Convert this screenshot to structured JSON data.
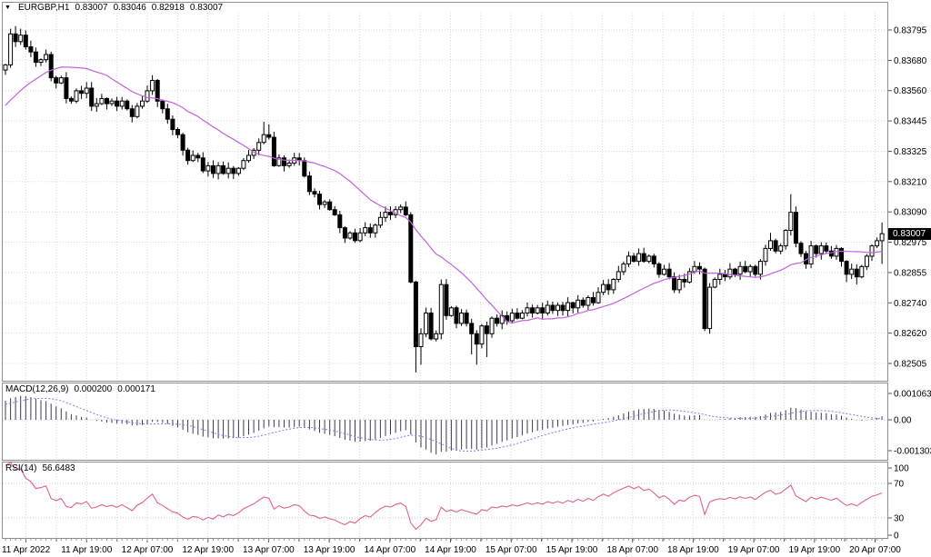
{
  "header": {
    "collapse_icon": "▼",
    "symbol_period": "EURGBP,H1",
    "open": "0.83007",
    "high": "0.83046",
    "low": "0.82918",
    "close": "0.83007"
  },
  "indicators": {
    "macd": {
      "label": "MACD(12,26,9)",
      "value_main": "0.000200",
      "value_signal": "0.000171"
    },
    "rsi": {
      "label": "RSI(14)",
      "value": "56.6483"
    }
  },
  "price_axis": {
    "current_price": "0.83007"
  },
  "colors": {
    "bull": "#ffffff",
    "bear": "#000000",
    "outline": "#000000",
    "ma": "#c162de",
    "macd_hist": "#3c3c50",
    "macd_signal": "#8878e0",
    "rsi": "#e2618c",
    "grid": "#d9d9d9",
    "level": "#c8c8c8",
    "tick": "#555555",
    "panel_border": "#8f8f8f",
    "price_tag_bg": "#000000",
    "price_tag_fg": "#ffffff"
  },
  "chart_data": {
    "type": "candlestick",
    "symbol": "EURGBP",
    "timeframe": "H1",
    "title": "EURGBP,H1 0.83007 0.83046 0.82918 0.83007",
    "price_axis_ticks": [
      "0.83795",
      "0.83680",
      "0.83560",
      "0.83445",
      "0.83325",
      "0.83210",
      "0.83090",
      "0.82975",
      "0.82855",
      "0.82740",
      "0.82620",
      "0.82505"
    ],
    "price_axis_range": [
      0.83795,
      0.82505
    ],
    "current_price": 0.83007,
    "macd_axis_ticks": [
      "0.001063",
      "0.00",
      "-0.001303"
    ],
    "rsi_axis_ticks": [
      "100",
      "70",
      "30",
      "0"
    ],
    "rsi_levels": [
      70,
      30
    ],
    "time_ticks": [
      "11 Apr 2022",
      "11 Apr 19:00",
      "12 Apr 07:00",
      "12 Apr 19:00",
      "13 Apr 07:00",
      "13 Apr 19:00",
      "14 Apr 07:00",
      "14 Apr 19:00",
      "15 Apr 07:00",
      "15 Apr 19:00",
      "18 Apr 07:00",
      "18 Apr 19:00",
      "19 Apr 07:00",
      "19 Apr 19:00",
      "20 Apr 07:00"
    ],
    "ma_period": 20,
    "macd_params": {
      "fast": 12,
      "slow": 26,
      "signal": 9
    },
    "rsi_period": 14,
    "prehistory_closes": [
      0.833,
      0.83312,
      0.83305,
      0.83328,
      0.8332,
      0.83342,
      0.83335,
      0.83356,
      0.8335,
      0.8337,
      0.83365,
      0.83385,
      0.8338,
      0.834,
      0.83395,
      0.83415,
      0.8341,
      0.83432,
      0.83428,
      0.8345,
      0.8347,
      0.8349,
      0.8352,
      0.83545,
      0.8357,
      0.83595,
      0.83615,
      0.8363,
      0.83645,
      0.8364
    ],
    "closes": [
      0.8366,
      0.8378,
      0.8375,
      0.83775,
      0.8373,
      0.8371,
      0.8367,
      0.8368,
      0.837,
      0.8361,
      0.8359,
      0.8361,
      0.8353,
      0.8352,
      0.8356,
      0.8355,
      0.8357,
      0.835,
      0.8351,
      0.8353,
      0.8351,
      0.8352,
      0.835,
      0.8352,
      0.8349,
      0.8346,
      0.835,
      0.8352,
      0.8356,
      0.836,
      0.8352,
      0.8349,
      0.8345,
      0.8341,
      0.8339,
      0.8333,
      0.8329,
      0.8331,
      0.833,
      0.8325,
      0.8327,
      0.8324,
      0.8327,
      0.8324,
      0.8326,
      0.8324,
      0.8326,
      0.8329,
      0.8331,
      0.8333,
      0.8336,
      0.8339,
      0.8338,
      0.8327,
      0.833,
      0.8327,
      0.8328,
      0.833,
      0.8329,
      0.8323,
      0.8317,
      0.8316,
      0.8312,
      0.8313,
      0.831,
      0.8308,
      0.8303,
      0.8299,
      0.8301,
      0.8298,
      0.8301,
      0.8303,
      0.8301,
      0.8304,
      0.8307,
      0.8309,
      0.8308,
      0.831,
      0.8311,
      0.8308,
      0.8282,
      0.8257,
      0.8262,
      0.827,
      0.826,
      0.8262,
      0.8281,
      0.8269,
      0.8272,
      0.8266,
      0.827,
      0.8266,
      0.8262,
      0.8258,
      0.8265,
      0.8262,
      0.8268,
      0.8266,
      0.8269,
      0.8267,
      0.827,
      0.8268,
      0.827,
      0.8272,
      0.827,
      0.8272,
      0.827,
      0.8273,
      0.8271,
      0.8273,
      0.8271,
      0.8274,
      0.8272,
      0.8275,
      0.8273,
      0.8276,
      0.8274,
      0.8278,
      0.8281,
      0.8279,
      0.8283,
      0.8286,
      0.8289,
      0.8292,
      0.829,
      0.8293,
      0.829,
      0.8292,
      0.8289,
      0.8285,
      0.8287,
      0.8284,
      0.8279,
      0.8283,
      0.8282,
      0.8286,
      0.8288,
      0.8287,
      0.8264,
      0.828,
      0.8283,
      0.8285,
      0.8284,
      0.8287,
      0.8285,
      0.8288,
      0.8286,
      0.8288,
      0.8285,
      0.829,
      0.8295,
      0.8298,
      0.8294,
      0.8296,
      0.8302,
      0.8309,
      0.8297,
      0.8293,
      0.8289,
      0.8296,
      0.8293,
      0.8296,
      0.8294,
      0.8292,
      0.8295,
      0.829,
      0.8285,
      0.8287,
      0.8284,
      0.8288,
      0.8292,
      0.8296,
      0.8298,
      0.83007
    ],
    "overrides": {
      "1": {
        "h": 0.838
      },
      "2": {
        "h": 0.8381
      },
      "3": {
        "h": 0.838
      },
      "29": {
        "h": 0.8362
      },
      "51": {
        "h": 0.8344
      },
      "52": {
        "h": 0.8343
      },
      "81": {
        "l": 0.8247
      },
      "82": {
        "l": 0.825
      },
      "86": {
        "h": 0.8283
      },
      "92": {
        "l": 0.8254
      },
      "93": {
        "l": 0.825
      },
      "95": {
        "l": 0.8253
      },
      "125": {
        "h": 0.8295
      },
      "138": {
        "l": 0.8263
      },
      "139": {
        "l": 0.8262
      },
      "151": {
        "h": 0.8301
      },
      "155": {
        "h": 0.8316
      },
      "166": {
        "l": 0.8282
      },
      "168": {
        "l": 0.8281
      },
      "173": {
        "h": 0.8305,
        "l": 0.8289
      }
    }
  }
}
